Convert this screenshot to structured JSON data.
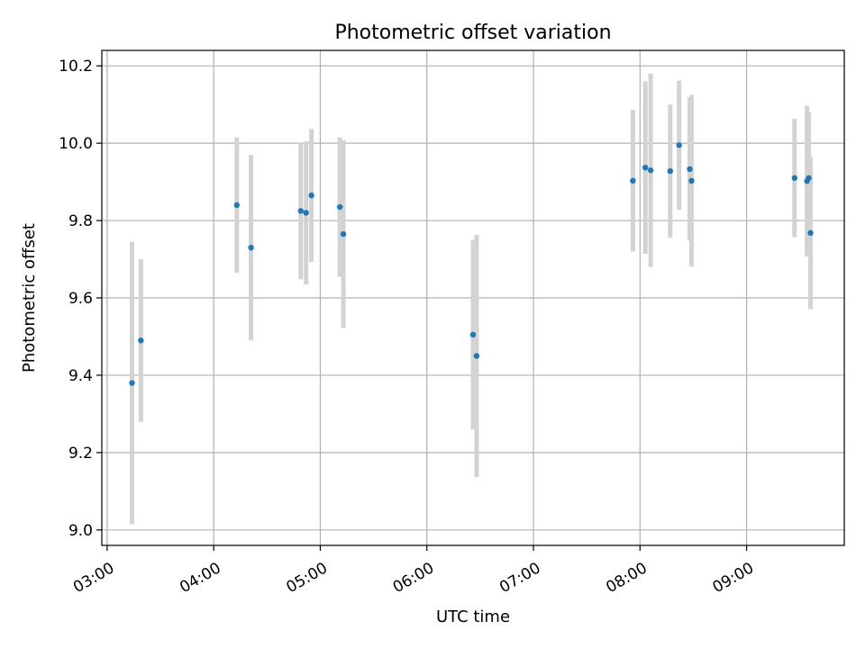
{
  "chart_data": {
    "type": "scatter",
    "title": "Photometric offset variation",
    "xlabel": "UTC time",
    "ylabel": "Photometric offset",
    "x_ticks": [
      "03:00",
      "04:00",
      "05:00",
      "06:00",
      "07:00",
      "08:00",
      "09:00"
    ],
    "y_ticks": [
      "9.0",
      "9.2",
      "9.4",
      "9.6",
      "9.8",
      "10.0",
      "10.2"
    ],
    "xlim": [
      "02:57",
      "09:55"
    ],
    "ylim": [
      8.96,
      10.24
    ],
    "grid": true,
    "point_color": "#1f77b4",
    "errorbar_color": "#d3d3d3",
    "points": [
      {
        "x": "03:14",
        "y": 9.38,
        "err": 0.365
      },
      {
        "x": "03:19",
        "y": 9.49,
        "err": 0.21
      },
      {
        "x": "04:13",
        "y": 9.84,
        "err": 0.175
      },
      {
        "x": "04:21",
        "y": 9.73,
        "err": 0.24
      },
      {
        "x": "04:49",
        "y": 9.825,
        "err": 0.177
      },
      {
        "x": "04:52",
        "y": 9.82,
        "err": 0.185
      },
      {
        "x": "04:55",
        "y": 9.865,
        "err": 0.172
      },
      {
        "x": "05:11",
        "y": 9.835,
        "err": 0.18
      },
      {
        "x": "05:13",
        "y": 9.765,
        "err": 0.243
      },
      {
        "x": "06:26",
        "y": 9.505,
        "err": 0.245
      },
      {
        "x": "06:28",
        "y": 9.45,
        "err": 0.313
      },
      {
        "x": "07:56",
        "y": 9.903,
        "err": 0.183
      },
      {
        "x": "08:03",
        "y": 9.937,
        "err": 0.223
      },
      {
        "x": "08:06",
        "y": 9.93,
        "err": 0.25
      },
      {
        "x": "08:17",
        "y": 9.928,
        "err": 0.172
      },
      {
        "x": "08:22",
        "y": 9.995,
        "err": 0.167
      },
      {
        "x": "08:28",
        "y": 9.933,
        "err": 0.185
      },
      {
        "x": "08:29",
        "y": 9.903,
        "err": 0.222
      },
      {
        "x": "09:27",
        "y": 9.91,
        "err": 0.153
      },
      {
        "x": "09:34",
        "y": 9.902,
        "err": 0.195
      },
      {
        "x": "09:35",
        "y": 9.91,
        "err": 0.17
      },
      {
        "x": "09:36",
        "y": 9.768,
        "err": 0.197
      }
    ]
  }
}
